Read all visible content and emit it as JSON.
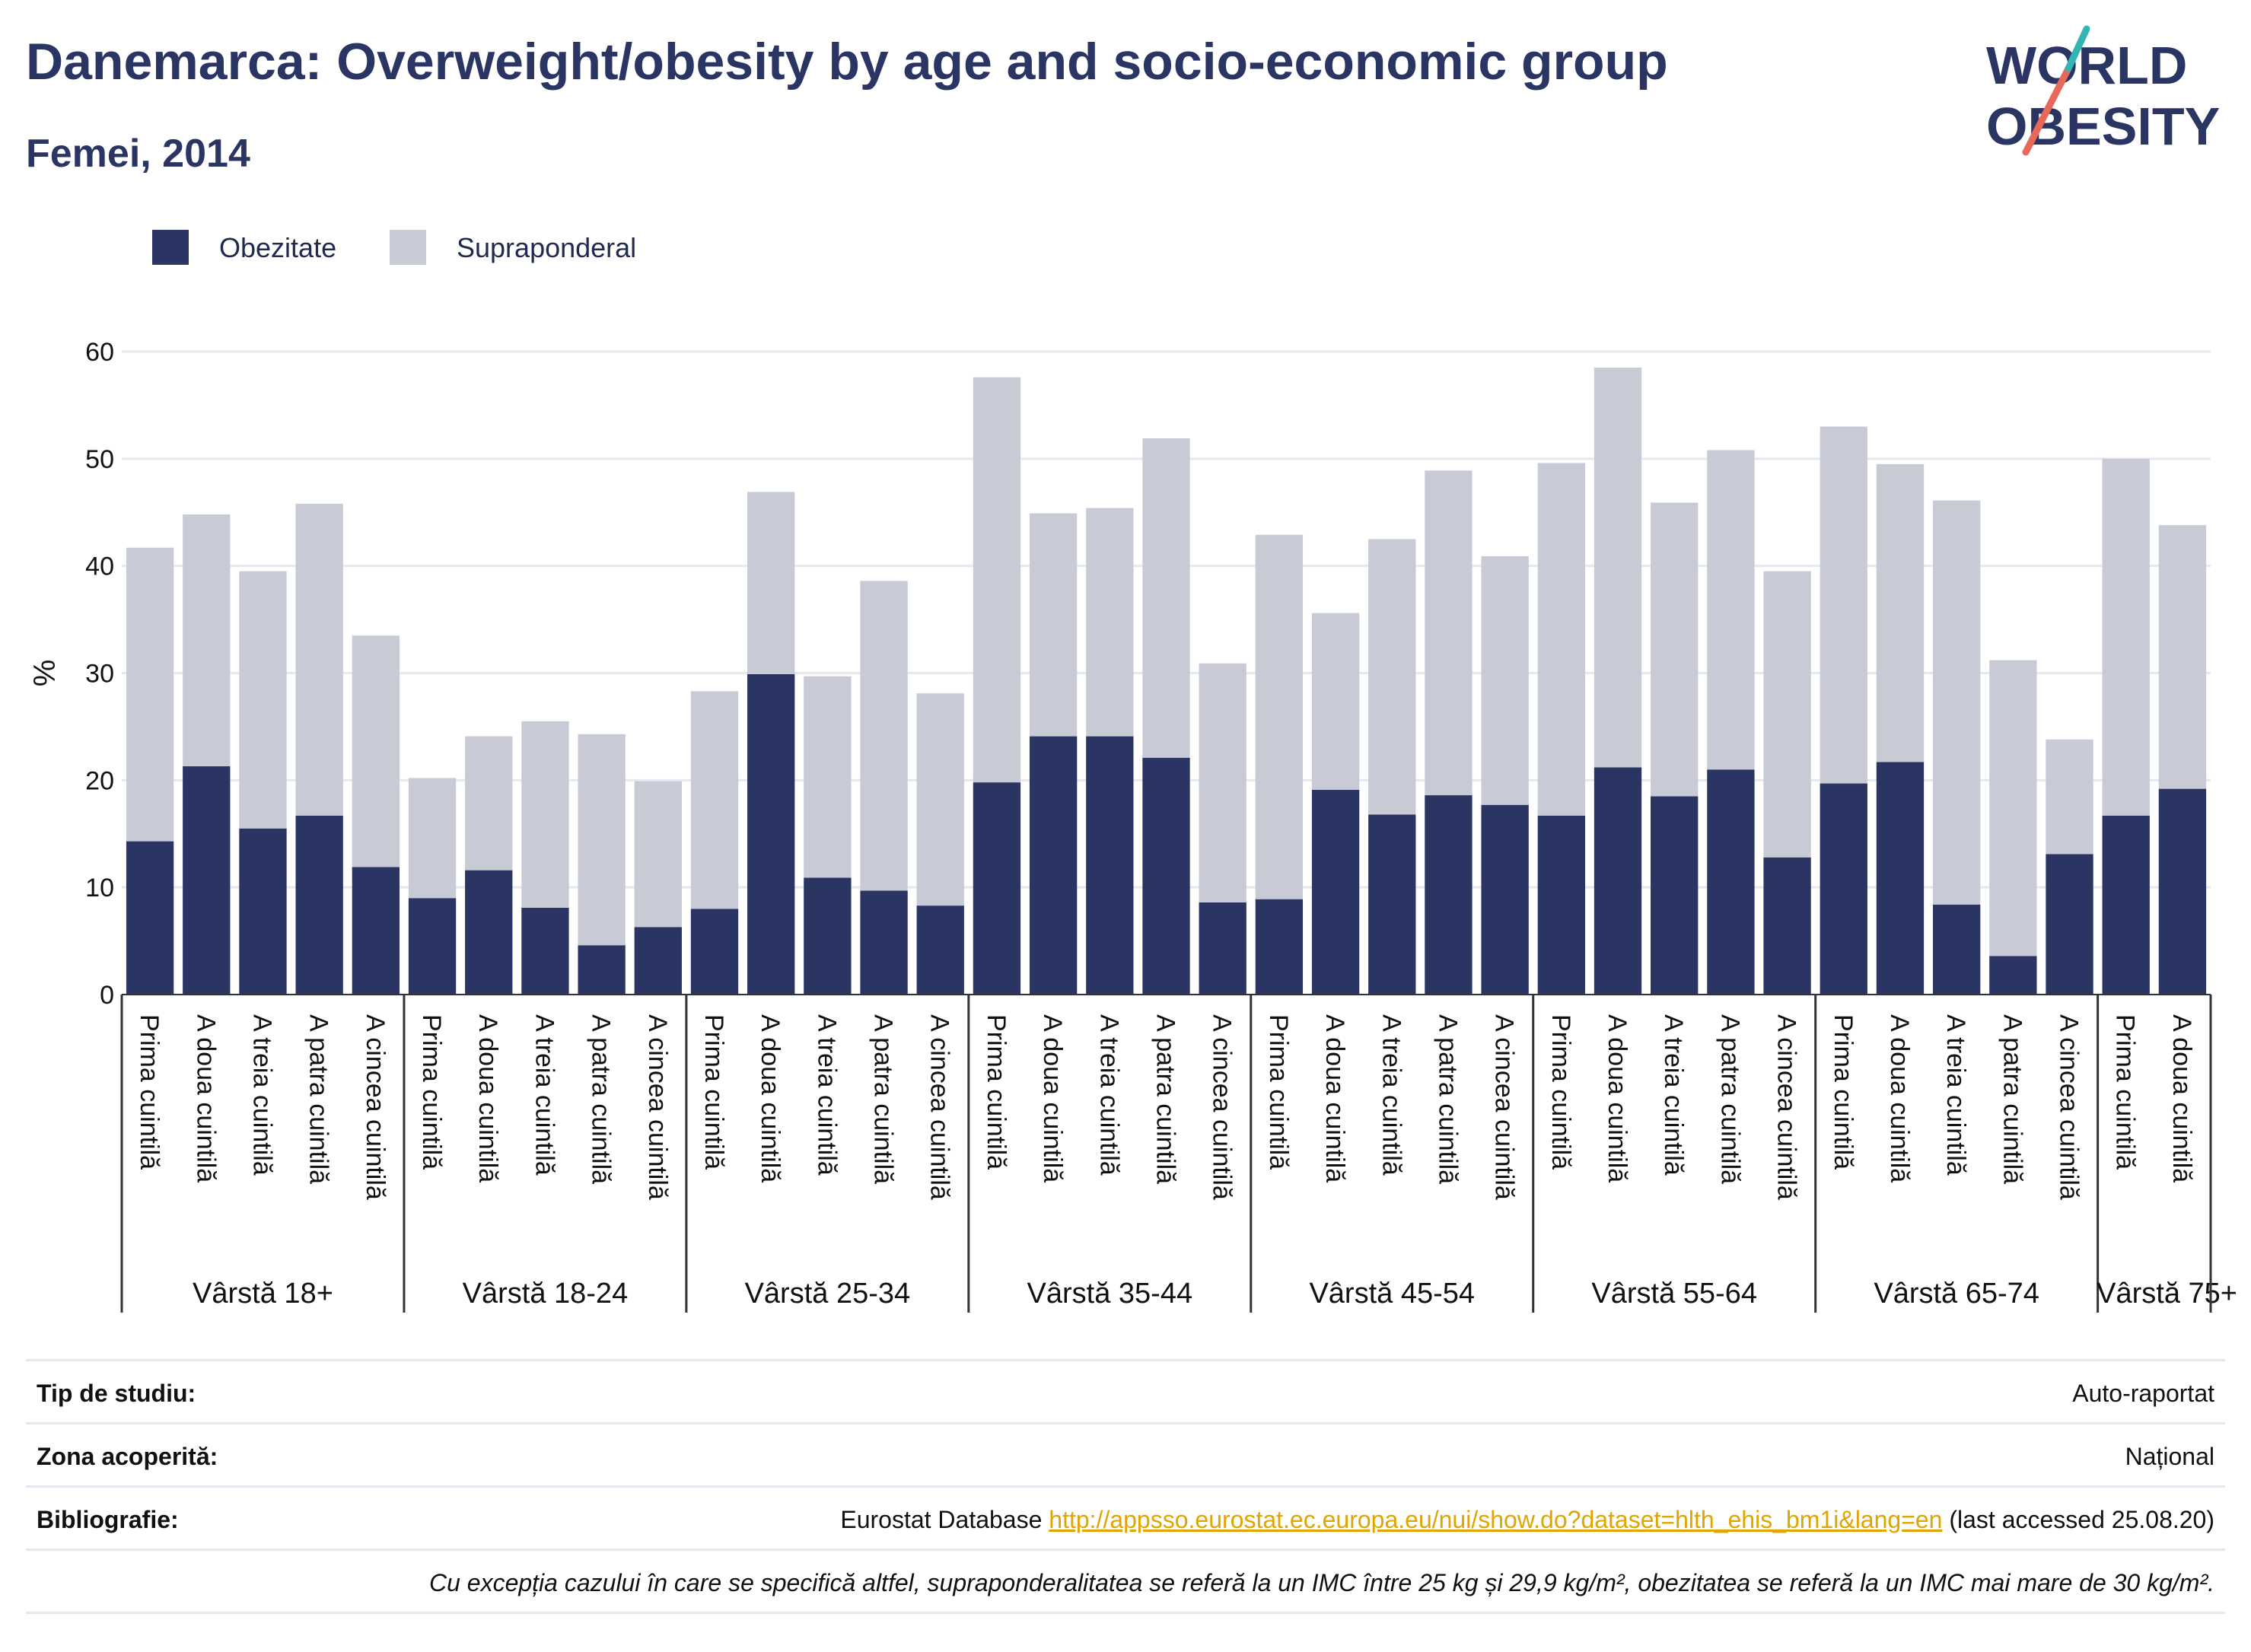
{
  "title": "Danemarca: Overweight/obesity by age and socio-economic group",
  "subtitle": "Femei, 2014",
  "logo": {
    "line1": "WORLD",
    "line2": "OBESITY"
  },
  "colors": {
    "obesity": "#2b3564",
    "overweight": "#c8cad6",
    "accent_teal": "#33b5b5",
    "accent_red": "#e8685a"
  },
  "chart_data": {
    "type": "bar",
    "stacked": true,
    "ylabel": "%",
    "ylim": [
      0,
      60
    ],
    "yticks": [
      0,
      10,
      20,
      30,
      40,
      50,
      60
    ],
    "grid": true,
    "legend_position": "top-left",
    "groups": [
      {
        "label": "Vârstă 18+",
        "categories": [
          "Prima cuintilă",
          "A doua cuintilă",
          "A treia cuintilă",
          "A patra cuintilă",
          "A cincea cuintilă"
        ]
      },
      {
        "label": "Vârstă 18-24",
        "categories": [
          "Prima cuintilă",
          "A doua cuintilă",
          "A treia cuintilă",
          "A patra cuintilă",
          "A cincea cuintilă"
        ]
      },
      {
        "label": "Vârstă 25-34",
        "categories": [
          "Prima cuintilă",
          "A doua cuintilă",
          "A treia cuintilă",
          "A patra cuintilă",
          "A cincea cuintilă"
        ]
      },
      {
        "label": "Vârstă 35-44",
        "categories": [
          "Prima cuintilă",
          "A doua cuintilă",
          "A treia cuintilă",
          "A patra cuintilă",
          "A cincea cuintilă"
        ]
      },
      {
        "label": "Vârstă 45-54",
        "categories": [
          "Prima cuintilă",
          "A doua cuintilă",
          "A treia cuintilă",
          "A patra cuintilă",
          "A cincea cuintilă"
        ]
      },
      {
        "label": "Vârstă 55-64",
        "categories": [
          "Prima cuintilă",
          "A doua cuintilă",
          "A treia cuintilă",
          "A patra cuintilă",
          "A cincea cuintilă"
        ]
      },
      {
        "label": "Vârstă 65-74",
        "categories": [
          "Prima cuintilă",
          "A doua cuintilă",
          "A treia cuintilă",
          "A patra cuintilă",
          "A cincea cuintilă"
        ]
      },
      {
        "label": "Vârstă 75+",
        "categories": [
          "Prima cuintilă",
          "A doua cuintilă"
        ]
      }
    ],
    "series": [
      {
        "name": "Obezitate",
        "values": [
          14.3,
          21.3,
          15.5,
          16.7,
          11.9,
          9.0,
          11.6,
          8.1,
          4.6,
          6.3,
          8.0,
          29.9,
          10.9,
          9.7,
          8.3,
          19.8,
          24.1,
          24.1,
          22.1,
          8.6,
          8.9,
          19.1,
          16.8,
          18.6,
          17.7,
          16.7,
          21.2,
          18.5,
          21.0,
          12.8,
          19.7,
          21.7,
          8.4,
          3.6,
          13.1,
          16.7,
          19.2
        ]
      },
      {
        "name": "Supraponderal",
        "values": [
          27.4,
          23.5,
          24.0,
          29.1,
          21.6,
          11.2,
          12.5,
          17.4,
          19.7,
          13.6,
          20.3,
          17.0,
          18.8,
          28.9,
          19.8,
          37.8,
          20.8,
          21.3,
          29.8,
          22.3,
          34.0,
          16.5,
          25.7,
          30.3,
          23.2,
          32.9,
          37.3,
          27.4,
          29.8,
          26.7,
          33.3,
          27.8,
          37.7,
          27.6,
          10.7,
          33.3,
          24.6
        ]
      }
    ]
  },
  "footer": {
    "study_type_label": "Tip de studiu:",
    "study_type_value": "Auto-raportat",
    "coverage_label": "Zona acoperită:",
    "coverage_value": "Național",
    "bibliography_label": "Bibliografie:",
    "bibliography_prefix": "Eurostat Database ",
    "bibliography_link": "http://appsso.eurostat.ec.europa.eu/nui/show.do?dataset=hlth_ehis_bm1i&lang=en",
    "bibliography_suffix": " (last accessed 25.08.20)",
    "note": "Cu excepția cazului în care se specifică altfel, supraponderalitatea se referă la un IMC între 25 kg și 29,9 kg/m², obezitatea se referă la un IMC mai mare de 30 kg/m²."
  }
}
